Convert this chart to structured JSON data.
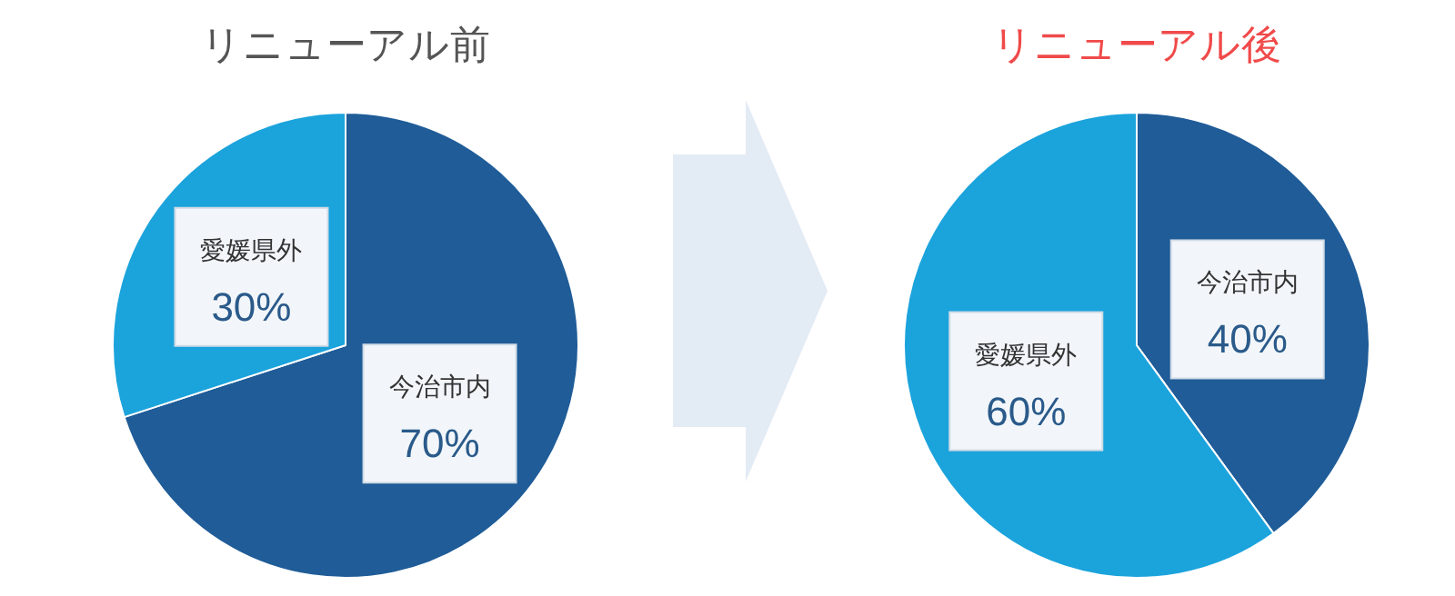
{
  "chart_data": [
    {
      "type": "pie",
      "title": "リニューアル前",
      "categories": [
        "今治市内",
        "愛媛県外"
      ],
      "values": [
        70,
        30
      ],
      "colors": [
        "#1f5c98",
        "#1ba3dc"
      ],
      "value_labels": [
        "70%",
        "30%"
      ]
    },
    {
      "type": "pie",
      "title": "リニューアル後",
      "categories": [
        "今治市内",
        "愛媛県外"
      ],
      "values": [
        40,
        60
      ],
      "colors": [
        "#1f5c98",
        "#1ba3dc"
      ],
      "value_labels": [
        "40%",
        "60%"
      ]
    }
  ]
}
